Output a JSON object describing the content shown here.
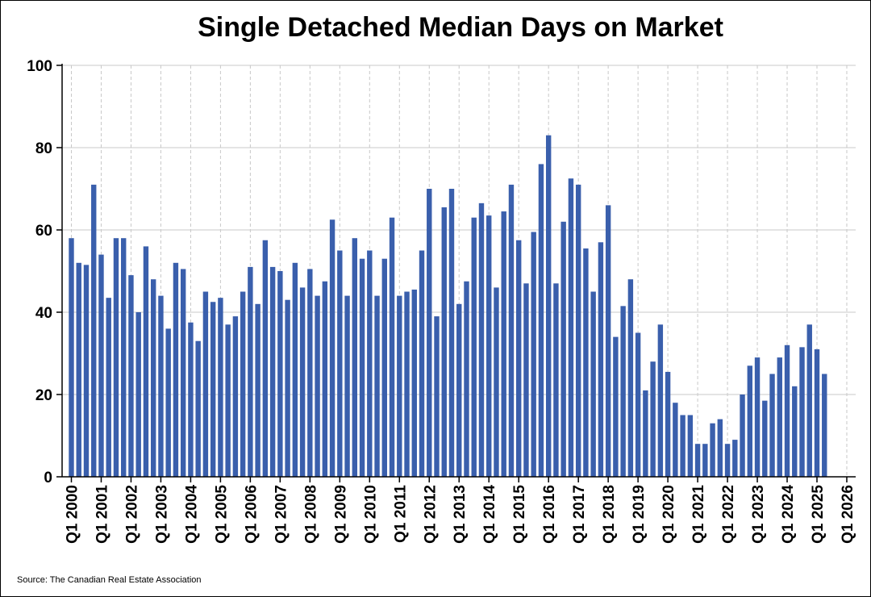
{
  "title": "Single Detached Median Days on Market",
  "source": "Source: The Canadian Real Estate Association",
  "colors": {
    "bar": "#3a5fac",
    "grid": "#c8c8c8",
    "axis": "#000000"
  },
  "chart_data": {
    "type": "bar",
    "title": "Single Detached Median Days on Market",
    "xlabel": "",
    "ylabel": "",
    "ylim": [
      0,
      100
    ],
    "yticks": [
      0,
      20,
      40,
      60,
      80,
      100
    ],
    "grid": true,
    "legend": "none",
    "x_tick_labels": [
      "Q1 2000",
      "Q1 2001",
      "Q1 2002",
      "Q1 2003",
      "Q1 2004",
      "Q1 2005",
      "Q1 2006",
      "Q1 2007",
      "Q1 2008",
      "Q1 2009",
      "Q1 2010",
      "Q1 2011",
      "Q1 2012",
      "Q1 2013",
      "Q1 2014",
      "Q1 2015",
      "Q1 2016",
      "Q1 2017",
      "Q1 2018",
      "Q1 2019",
      "Q1 2020",
      "Q1 2021",
      "Q1 2022",
      "Q1 2023",
      "Q1 2024",
      "Q1 2025",
      "Q1 2026"
    ],
    "start_quarter": "Q1 2000",
    "values": [
      58,
      52,
      51.5,
      71,
      54,
      43.5,
      58,
      58,
      49,
      40,
      56,
      48,
      44,
      36,
      52,
      50.5,
      37.5,
      33,
      45,
      42.5,
      43.5,
      37,
      39,
      45,
      51,
      42,
      57.5,
      51,
      50,
      43,
      52,
      46,
      50.5,
      44,
      47.5,
      62.5,
      55,
      44,
      58,
      53,
      55,
      44,
      53,
      63,
      44,
      45,
      45.5,
      55,
      70,
      39,
      65.5,
      70,
      42,
      47.5,
      63,
      66.5,
      63.5,
      46,
      64.5,
      71,
      57.5,
      47,
      59.5,
      76,
      83,
      47,
      62,
      72.5,
      71,
      55.5,
      45,
      57,
      66,
      34,
      41.5,
      48,
      35,
      21,
      28,
      37,
      25.5,
      18,
      15,
      15,
      8,
      8,
      13,
      14,
      8,
      9,
      20,
      27,
      29,
      18.5,
      25,
      29,
      32,
      22,
      31.5,
      37,
      31,
      25
    ]
  }
}
